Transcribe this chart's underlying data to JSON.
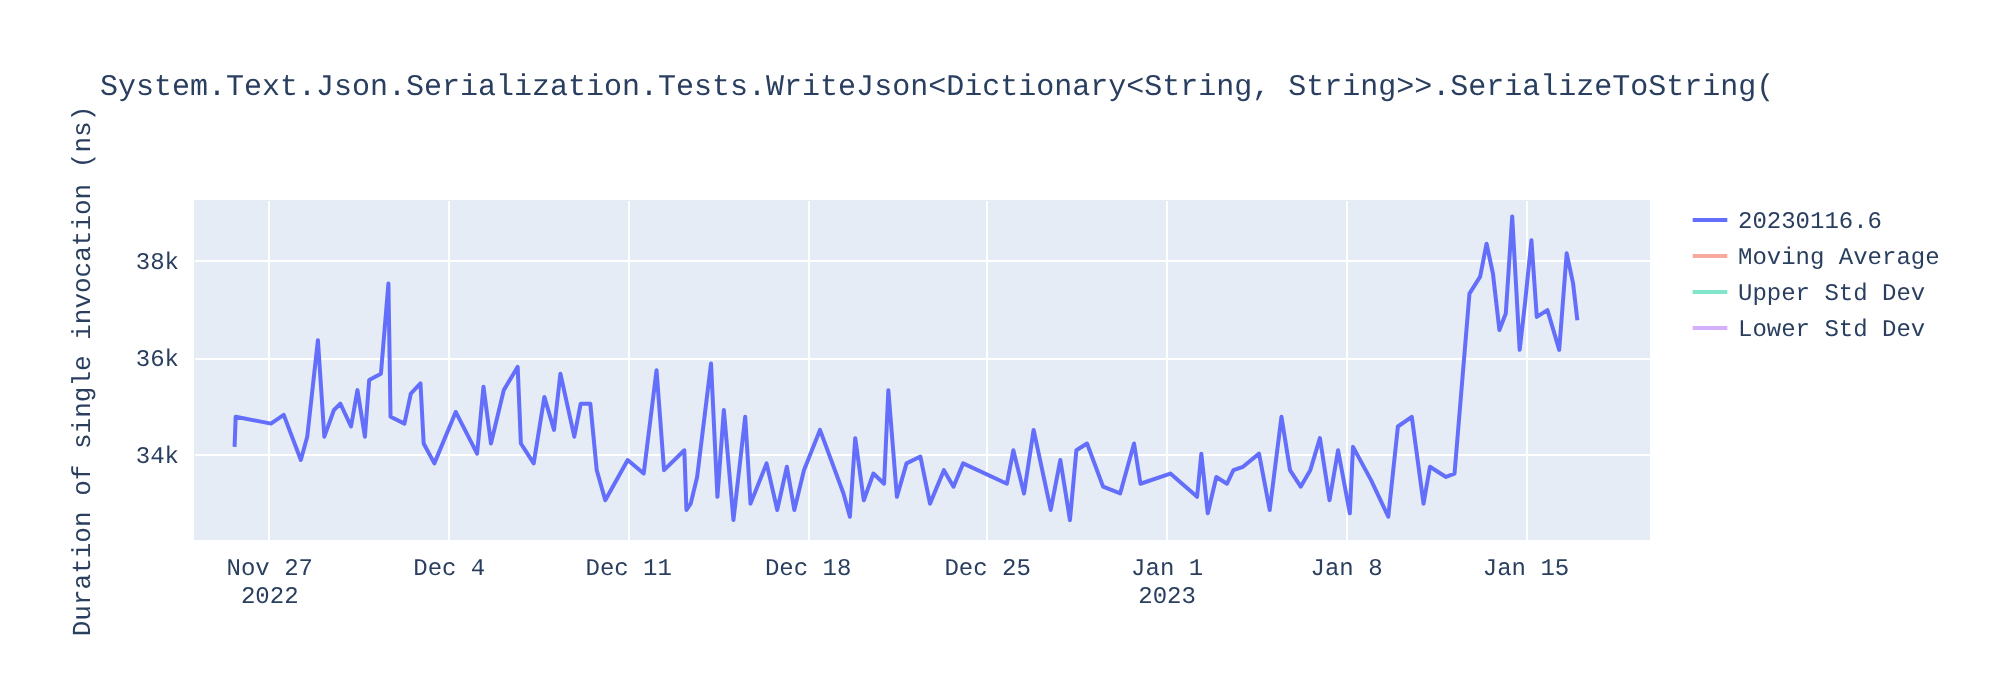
{
  "chart_data": {
    "type": "line",
    "title": "System.Text.Json.Serialization.Tests.WriteJson<Dictionary<String, String>>.SerializeToString(",
    "ylabel": "Duration of single invocation (ns)",
    "x": [
      "2022-11-25T16:00",
      "2022-11-25T17:00",
      "2022-11-27T02:00",
      "2022-11-27T14:00",
      "2022-11-28T06:00",
      "2022-11-28T12:00",
      "2022-11-28T22:00",
      "2022-11-29T04:00",
      "2022-11-29T13:00",
      "2022-11-29T19:00",
      "2022-11-30T05:00",
      "2022-11-30T11:00",
      "2022-11-30T18:00",
      "2022-11-30T22:00",
      "2022-12-01T09:00",
      "2022-12-01T16:00",
      "2022-12-01T18:00",
      "2022-12-02T07:00",
      "2022-12-02T13:00",
      "2022-12-02T22:00",
      "2022-12-03T01:00",
      "2022-12-03T11:00",
      "2022-12-04T07:00",
      "2022-12-05T03:00",
      "2022-12-05T09:00",
      "2022-12-05T16:00",
      "2022-12-06T04:00",
      "2022-12-06T17:00",
      "2022-12-06T20:00",
      "2022-12-07T08:00",
      "2022-12-07T18:00",
      "2022-12-08T03:00",
      "2022-12-08T09:00",
      "2022-12-08T22:00",
      "2022-12-09T04:00",
      "2022-12-09T13:00",
      "2022-12-09T19:00",
      "2022-12-10T03:00",
      "2022-12-11T00:00",
      "2022-12-11T15:00",
      "2022-12-12T03:00",
      "2022-12-12T10:00",
      "2022-12-13T05:00",
      "2022-12-13T07:00",
      "2022-12-13T11:00",
      "2022-12-13T17:00",
      "2022-12-14T06:00",
      "2022-12-14T12:00",
      "2022-12-14T18:00",
      "2022-12-15T03:00",
      "2022-12-15T14:00",
      "2022-12-15T19:00",
      "2022-12-16T10:00",
      "2022-12-16T20:00",
      "2022-12-17T05:00",
      "2022-12-17T12:00",
      "2022-12-17T21:00",
      "2022-12-18T12:00",
      "2022-12-19T10:00",
      "2022-12-19T16:00",
      "2022-12-19T21:00",
      "2022-12-20T05:00",
      "2022-12-20T14:00",
      "2022-12-21T00:00",
      "2022-12-21T04:00",
      "2022-12-21T12:00",
      "2022-12-21T21:00",
      "2022-12-22T10:00",
      "2022-12-22T19:00",
      "2022-12-23T08:00",
      "2022-12-23T17:00",
      "2022-12-24T02:00",
      "2022-12-25T19:00",
      "2022-12-26T01:00",
      "2022-12-26T11:00",
      "2022-12-26T20:00",
      "2022-12-27T12:00",
      "2022-12-27T21:00",
      "2022-12-28T06:00",
      "2022-12-28T12:00",
      "2022-12-28T22:00",
      "2022-12-29T13:00",
      "2022-12-30T05:00",
      "2022-12-30T18:00",
      "2022-12-31T00:00",
      "2023-01-01T04:00",
      "2023-01-02T05:00",
      "2023-01-02T09:00",
      "2023-01-02T15:00",
      "2023-01-02T23:00",
      "2023-01-03T09:00",
      "2023-01-03T15:00",
      "2023-01-04T00:00",
      "2023-01-04T15:00",
      "2023-01-05T01:00",
      "2023-01-05T12:00",
      "2023-01-05T20:00",
      "2023-01-06T06:00",
      "2023-01-06T15:00",
      "2023-01-07T00:00",
      "2023-01-07T09:00",
      "2023-01-07T17:00",
      "2023-01-08T04:00",
      "2023-01-08T07:00",
      "2023-01-09T00:00",
      "2023-01-09T16:00",
      "2023-01-10T01:00",
      "2023-01-10T14:00",
      "2023-01-11T01:00",
      "2023-01-11T07:00",
      "2023-01-11T22:00",
      "2023-01-12T06:00",
      "2023-01-12T20:00",
      "2023-01-13T06:00",
      "2023-01-13T12:00",
      "2023-01-13T18:00",
      "2023-01-14T00:00",
      "2023-01-14T06:00",
      "2023-01-14T12:00",
      "2023-01-14T19:00",
      "2023-01-15T00:00",
      "2023-01-15T06:00",
      "2023-01-15T11:00",
      "2023-01-15T21:00",
      "2023-01-16T08:00",
      "2023-01-16T15:00",
      "2023-01-16T21:00",
      "2023-01-17T01:00"
    ],
    "series": [
      {
        "name": "20230116.6",
        "color": "#636efa",
        "values": [
          34150,
          34770,
          34630,
          34810,
          33880,
          34360,
          36350,
          34360,
          34910,
          35040,
          34570,
          35320,
          34360,
          35530,
          35660,
          37520,
          34770,
          34630,
          35250,
          35460,
          34220,
          33810,
          34870,
          34010,
          35390,
          34220,
          35320,
          35800,
          34220,
          33810,
          35180,
          34500,
          35660,
          34360,
          35040,
          35040,
          33670,
          33050,
          33880,
          33600,
          35730,
          33670,
          34080,
          32850,
          32980,
          33530,
          35870,
          33120,
          34910,
          32640,
          34770,
          32980,
          33810,
          32850,
          33740,
          32850,
          33670,
          34500,
          33190,
          32710,
          34330,
          33050,
          33600,
          33390,
          35320,
          33120,
          33810,
          33950,
          32980,
          33670,
          33330,
          33810,
          33390,
          34080,
          33190,
          34500,
          32850,
          33880,
          32640,
          34080,
          34220,
          33330,
          33190,
          34220,
          33390,
          33600,
          33120,
          34010,
          32780,
          33530,
          33390,
          33670,
          33740,
          34010,
          32850,
          34770,
          33670,
          33330,
          33670,
          34330,
          33050,
          34080,
          32780,
          34150,
          33460,
          32710,
          34570,
          34770,
          32980,
          33740,
          33530,
          33600,
          37310,
          37660,
          38340,
          37720,
          36560,
          36900,
          38900,
          36150,
          37110,
          38410,
          36830,
          36970,
          36150,
          38140,
          37520,
          36760
        ]
      },
      {
        "name": "Moving Average",
        "color": "#f7aa9d",
        "values": [
          null,
          null,
          null,
          null,
          null,
          null,
          null,
          null,
          null,
          null,
          null,
          null,
          null,
          null,
          null,
          null,
          null,
          null,
          null,
          null,
          null,
          null,
          null,
          null,
          null,
          null,
          null,
          null,
          null,
          null,
          null,
          null,
          null,
          null,
          null,
          null,
          null,
          null,
          null,
          null,
          null,
          null,
          null,
          null,
          null,
          null,
          null,
          null,
          null,
          null,
          null,
          null,
          null,
          null,
          null,
          null,
          null,
          null,
          null,
          null,
          null,
          null,
          null,
          null,
          null,
          null,
          null,
          null,
          null,
          null,
          null,
          null,
          null,
          null,
          null,
          null,
          null,
          null,
          null,
          null,
          null,
          null,
          null,
          null,
          null,
          null,
          null,
          null,
          null,
          null,
          null,
          null,
          null,
          null,
          null,
          null,
          null,
          null,
          null,
          null,
          null,
          null,
          null,
          null,
          null,
          null,
          null,
          null,
          null,
          null,
          null,
          null,
          null,
          null,
          null,
          null,
          null,
          null,
          null,
          null,
          null,
          null,
          null,
          null,
          null,
          null,
          null,
          null
        ]
      },
      {
        "name": "Upper Std Dev",
        "color": "#80e5cb",
        "values": [
          null,
          null,
          null,
          null,
          null,
          null,
          null,
          null,
          null,
          null,
          null,
          null,
          null,
          null,
          null,
          null,
          null,
          null,
          null,
          null,
          null,
          null,
          null,
          null,
          null,
          null,
          null,
          null,
          null,
          null,
          null,
          null,
          null,
          null,
          null,
          null,
          null,
          null,
          null,
          null,
          null,
          null,
          null,
          null,
          null,
          null,
          null,
          null,
          null,
          null,
          null,
          null,
          null,
          null,
          null,
          null,
          null,
          null,
          null,
          null,
          null,
          null,
          null,
          null,
          null,
          null,
          null,
          null,
          null,
          null,
          null,
          null,
          null,
          null,
          null,
          null,
          null,
          null,
          null,
          null,
          null,
          null,
          null,
          null,
          null,
          null,
          null,
          null,
          null,
          null,
          null,
          null,
          null,
          null,
          null,
          null,
          null,
          null,
          null,
          null,
          null,
          null,
          null,
          null,
          null,
          null,
          null,
          null,
          null,
          null,
          null,
          null,
          null,
          null,
          null,
          null,
          null,
          null,
          null,
          null,
          null,
          null,
          null,
          null,
          null,
          null,
          null,
          null
        ]
      },
      {
        "name": "Lower Std Dev",
        "color": "#d5b1fd",
        "values": [
          null,
          null,
          null,
          null,
          null,
          null,
          null,
          null,
          null,
          null,
          null,
          null,
          null,
          null,
          null,
          null,
          null,
          null,
          null,
          null,
          null,
          null,
          null,
          null,
          null,
          null,
          null,
          null,
          null,
          null,
          null,
          null,
          null,
          null,
          null,
          null,
          null,
          null,
          null,
          null,
          null,
          null,
          null,
          null,
          null,
          null,
          null,
          null,
          null,
          null,
          null,
          null,
          null,
          null,
          null,
          null,
          null,
          null,
          null,
          null,
          null,
          null,
          null,
          null,
          null,
          null,
          null,
          null,
          null,
          null,
          null,
          null,
          null,
          null,
          null,
          null,
          null,
          null,
          null,
          null,
          null,
          null,
          null,
          null,
          null,
          null,
          null,
          null,
          null,
          null,
          null,
          null,
          null,
          null,
          null,
          null,
          null,
          null,
          null,
          null,
          null,
          null,
          null,
          null,
          null,
          null,
          null,
          null,
          null,
          null,
          null,
          null,
          null,
          null,
          null,
          null,
          null,
          null,
          null,
          null,
          null,
          null,
          null,
          null,
          null,
          null,
          null,
          null
        ]
      }
    ],
    "xlim": [
      "2022-11-24T02:00",
      "2023-01-19T21:00"
    ],
    "xticks": [
      {
        "value": "2022-11-27",
        "label": "Nov 27\n2022"
      },
      {
        "value": "2022-12-04",
        "label": "Dec 4"
      },
      {
        "value": "2022-12-11",
        "label": "Dec 11"
      },
      {
        "value": "2022-12-18",
        "label": "Dec 18"
      },
      {
        "value": "2022-12-25",
        "label": "Dec 25"
      },
      {
        "value": "2023-01-01",
        "label": "Jan 1\n2023"
      },
      {
        "value": "2023-01-08",
        "label": "Jan 8"
      },
      {
        "value": "2023-01-15",
        "label": "Jan 15"
      }
    ],
    "ylim": [
      32230,
      39240
    ],
    "yticks": [
      {
        "value": 34000,
        "label": "34k"
      },
      {
        "value": 36000,
        "label": "36k"
      },
      {
        "value": 38000,
        "label": "38k"
      }
    ],
    "grid": true,
    "legend": "right",
    "line_style": "solid"
  }
}
